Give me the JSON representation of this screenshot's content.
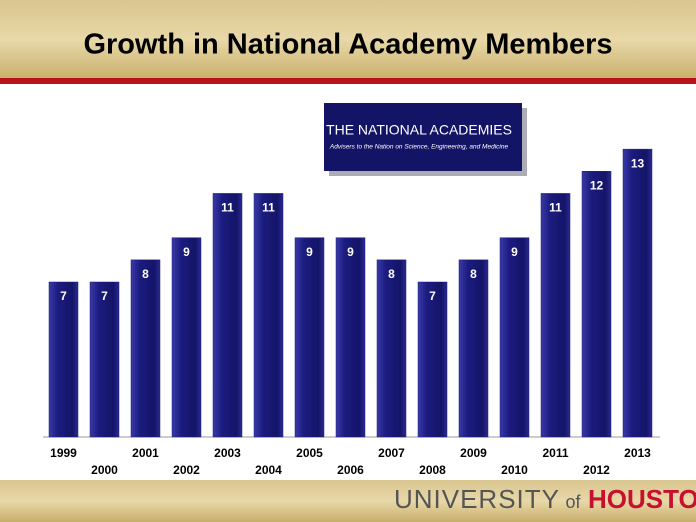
{
  "chart_data": {
    "type": "bar",
    "title": "Growth in National Academy Members",
    "categories": [
      "1999",
      "2000",
      "2001",
      "2002",
      "2003",
      "2004",
      "2005",
      "2006",
      "2007",
      "2008",
      "2009",
      "2010",
      "2011",
      "2012",
      "2013"
    ],
    "values": [
      7,
      7,
      8,
      9,
      11,
      11,
      9,
      9,
      8,
      7,
      8,
      9,
      11,
      12,
      13
    ],
    "color": "#1c1c80",
    "ylim": [
      0,
      14
    ]
  },
  "logo": {
    "title": "THE NATIONAL ACADEMIES",
    "subtitle": "Advisers to the Nation on Science, Engineering, and Medicine"
  },
  "footer": {
    "university": "UNIVERSITY",
    "of": "of",
    "houston": "HOUSTON"
  }
}
